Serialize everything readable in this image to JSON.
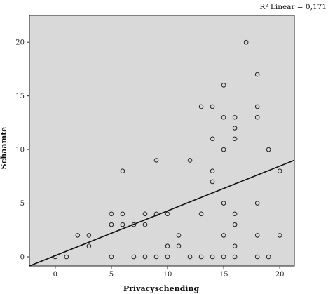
{
  "chart_data": {
    "type": "scatter",
    "title": "",
    "xlabel": "Privacyschending",
    "ylabel": "Schaamte",
    "xlim": [
      -2.3,
      21.3
    ],
    "ylim": [
      -0.85,
      22.5
    ],
    "x_ticks": [
      0,
      5,
      10,
      15,
      20
    ],
    "y_ticks": [
      0,
      5,
      10,
      15,
      20
    ],
    "grid": false,
    "legend": "none",
    "colors": {
      "plot_background": "#d9d9d9",
      "marker_stroke": "#222222",
      "fit_line": "#111111"
    },
    "annotation": "R² Linear = 0,171",
    "fit_line": {
      "x": [
        -2.3,
        21.3
      ],
      "y": [
        -0.85,
        9.0
      ]
    },
    "points": [
      {
        "x": 0,
        "y": 0
      },
      {
        "x": 1,
        "y": 0
      },
      {
        "x": 2,
        "y": 2
      },
      {
        "x": 3,
        "y": 2
      },
      {
        "x": 3,
        "y": 1
      },
      {
        "x": 5,
        "y": 4
      },
      {
        "x": 5,
        "y": 3
      },
      {
        "x": 5,
        "y": 0
      },
      {
        "x": 6,
        "y": 8
      },
      {
        "x": 6,
        "y": 4
      },
      {
        "x": 6,
        "y": 3
      },
      {
        "x": 7,
        "y": 3
      },
      {
        "x": 7,
        "y": 0
      },
      {
        "x": 8,
        "y": 4
      },
      {
        "x": 8,
        "y": 3
      },
      {
        "x": 8,
        "y": 0
      },
      {
        "x": 9,
        "y": 9
      },
      {
        "x": 9,
        "y": 4
      },
      {
        "x": 9,
        "y": 0
      },
      {
        "x": 10,
        "y": 4
      },
      {
        "x": 10,
        "y": 1
      },
      {
        "x": 10,
        "y": 0
      },
      {
        "x": 11,
        "y": 2
      },
      {
        "x": 11,
        "y": 1
      },
      {
        "x": 12,
        "y": 9
      },
      {
        "x": 12,
        "y": 0
      },
      {
        "x": 13,
        "y": 14
      },
      {
        "x": 13,
        "y": 4
      },
      {
        "x": 13,
        "y": 0
      },
      {
        "x": 14,
        "y": 14
      },
      {
        "x": 14,
        "y": 11
      },
      {
        "x": 14,
        "y": 8
      },
      {
        "x": 14,
        "y": 7
      },
      {
        "x": 14,
        "y": 0
      },
      {
        "x": 15,
        "y": 16
      },
      {
        "x": 15,
        "y": 13
      },
      {
        "x": 15,
        "y": 10
      },
      {
        "x": 15,
        "y": 5
      },
      {
        "x": 15,
        "y": 2
      },
      {
        "x": 15,
        "y": 0
      },
      {
        "x": 16,
        "y": 13
      },
      {
        "x": 16,
        "y": 12
      },
      {
        "x": 16,
        "y": 11
      },
      {
        "x": 16,
        "y": 4
      },
      {
        "x": 16,
        "y": 3
      },
      {
        "x": 16,
        "y": 1
      },
      {
        "x": 16,
        "y": 0
      },
      {
        "x": 17,
        "y": 20
      },
      {
        "x": 18,
        "y": 17
      },
      {
        "x": 18,
        "y": 14
      },
      {
        "x": 18,
        "y": 13
      },
      {
        "x": 18,
        "y": 5
      },
      {
        "x": 18,
        "y": 2
      },
      {
        "x": 18,
        "y": 0
      },
      {
        "x": 19,
        "y": 10
      },
      {
        "x": 19,
        "y": 0
      },
      {
        "x": 20,
        "y": 8
      },
      {
        "x": 20,
        "y": 2
      }
    ]
  }
}
